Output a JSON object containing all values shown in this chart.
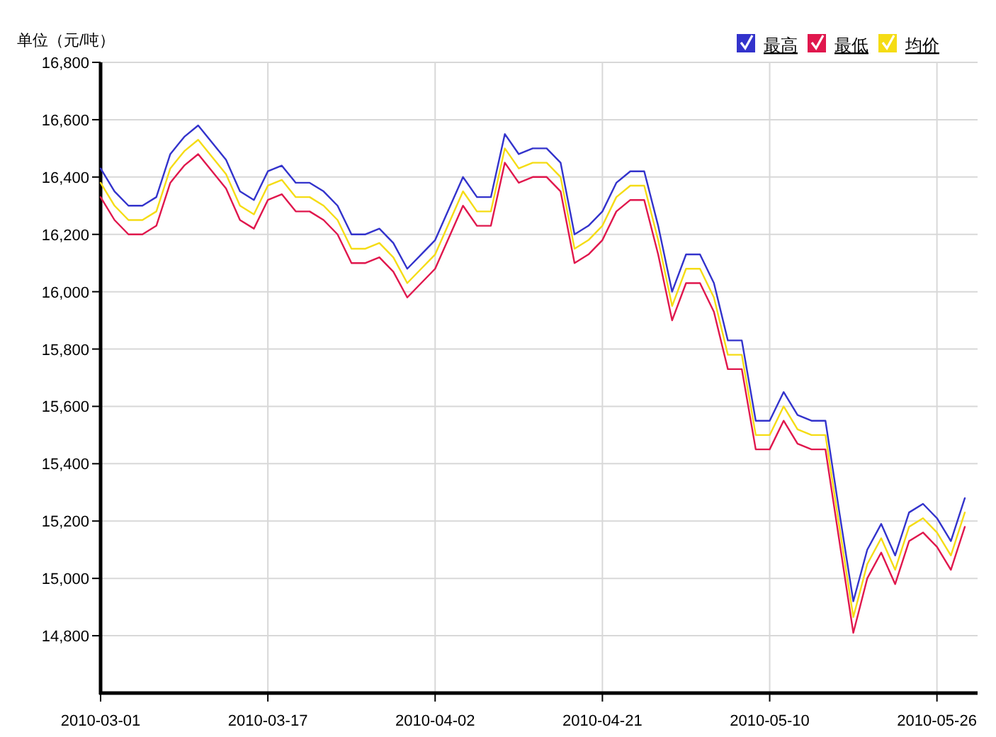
{
  "chart_data": {
    "type": "line",
    "ylabel": "单位（元/吨）",
    "categories": [
      "2010-03-01",
      null,
      null,
      null,
      null,
      null,
      null,
      null,
      null,
      null,
      null,
      null,
      "2010-03-17",
      null,
      null,
      null,
      null,
      null,
      null,
      null,
      null,
      null,
      null,
      null,
      "2010-04-02",
      null,
      null,
      null,
      null,
      null,
      null,
      null,
      null,
      null,
      null,
      null,
      "2010-04-21",
      null,
      null,
      null,
      null,
      null,
      null,
      null,
      null,
      null,
      null,
      null,
      "2010-05-10",
      null,
      null,
      null,
      null,
      null,
      null,
      null,
      null,
      null,
      null,
      null,
      "2010-05-26",
      null,
      null
    ],
    "series": [
      {
        "name": "最高",
        "color": "#3333cc",
        "values": [
          16430,
          16350,
          16300,
          16300,
          16330,
          16480,
          16540,
          16580,
          16520,
          16460,
          16350,
          16320,
          16420,
          16440,
          16380,
          16380,
          16350,
          16300,
          16200,
          16200,
          16220,
          16170,
          16080,
          16130,
          16180,
          16290,
          16400,
          16330,
          16330,
          16550,
          16480,
          16500,
          16500,
          16450,
          16200,
          16230,
          16280,
          16380,
          16420,
          16420,
          16230,
          16000,
          16130,
          16130,
          16030,
          15830,
          15830,
          15550,
          15550,
          15650,
          15570,
          15550,
          15550,
          15230,
          14920,
          15100,
          15190,
          15080,
          15230,
          15260,
          15210,
          15130,
          15280
        ]
      },
      {
        "name": "最低",
        "color": "#e0174d",
        "values": [
          16330,
          16250,
          16200,
          16200,
          16230,
          16380,
          16440,
          16480,
          16420,
          16360,
          16250,
          16220,
          16320,
          16340,
          16280,
          16280,
          16250,
          16200,
          16100,
          16100,
          16120,
          16070,
          15980,
          16030,
          16080,
          16190,
          16300,
          16230,
          16230,
          16450,
          16380,
          16400,
          16400,
          16350,
          16100,
          16130,
          16180,
          16280,
          16320,
          16320,
          16130,
          15900,
          16030,
          16030,
          15930,
          15730,
          15730,
          15450,
          15450,
          15550,
          15470,
          15450,
          15450,
          15130,
          14810,
          15000,
          15090,
          14980,
          15130,
          15160,
          15110,
          15030,
          15180
        ]
      },
      {
        "name": "均价",
        "color": "#f5dc14",
        "values": [
          16380,
          16300,
          16250,
          16250,
          16280,
          16430,
          16490,
          16530,
          16470,
          16410,
          16300,
          16270,
          16370,
          16390,
          16330,
          16330,
          16300,
          16250,
          16150,
          16150,
          16170,
          16120,
          16030,
          16080,
          16130,
          16240,
          16350,
          16280,
          16280,
          16500,
          16430,
          16450,
          16450,
          16400,
          16150,
          16180,
          16230,
          16330,
          16370,
          16370,
          16180,
          15950,
          16080,
          16080,
          15980,
          15780,
          15780,
          15500,
          15500,
          15600,
          15520,
          15500,
          15500,
          15180,
          14865,
          15050,
          15140,
          15030,
          15180,
          15210,
          15160,
          15080,
          15230
        ]
      }
    ],
    "ylim": [
      14600,
      16800
    ],
    "yticks": [
      {
        "value": 14800,
        "label": "14,800"
      },
      {
        "value": 15000,
        "label": "15,000"
      },
      {
        "value": 15200,
        "label": "15,200"
      },
      {
        "value": 15400,
        "label": "15,400"
      },
      {
        "value": 15600,
        "label": "15,600"
      },
      {
        "value": 15800,
        "label": "15,800"
      },
      {
        "value": 16000,
        "label": "16,000"
      },
      {
        "value": 16200,
        "label": "16,200"
      },
      {
        "value": 16400,
        "label": "16,400"
      },
      {
        "value": 16600,
        "label": "16,600"
      },
      {
        "value": 16800,
        "label": "16,800"
      }
    ],
    "grid": true,
    "legend": "top right",
    "marker": "none",
    "line_style": "solid"
  }
}
